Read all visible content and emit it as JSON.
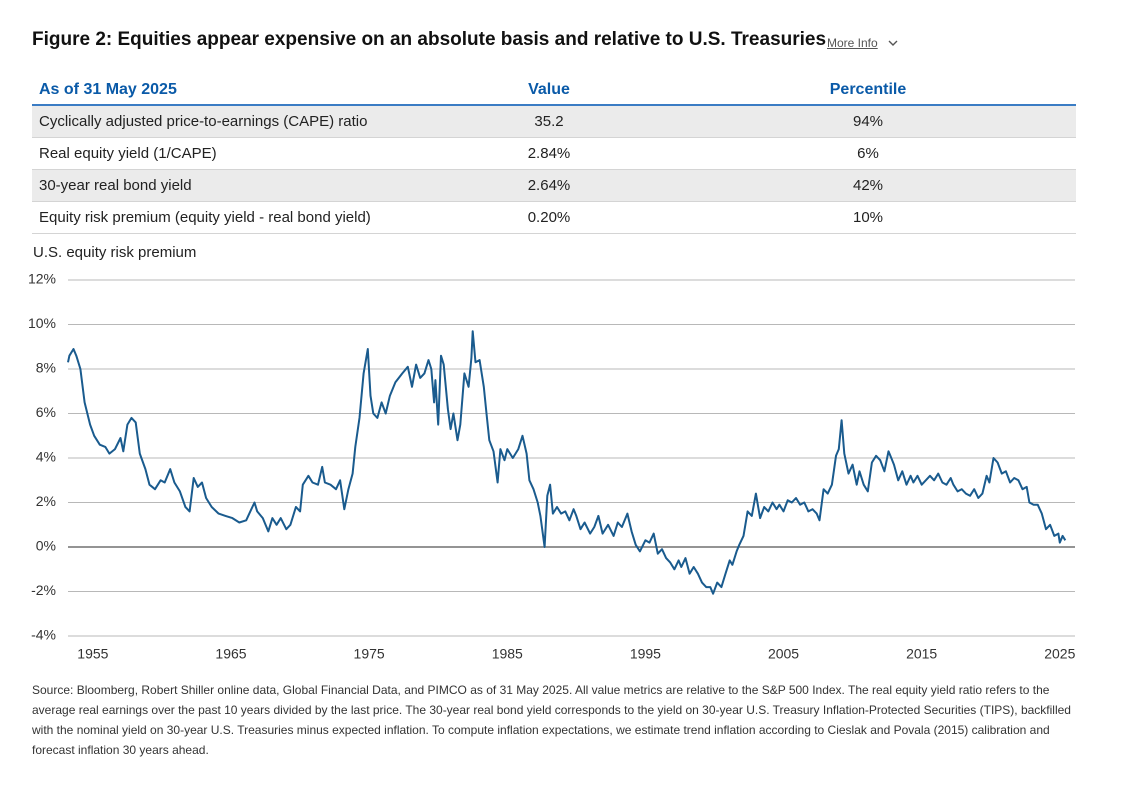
{
  "header": {
    "title": "Figure 2: Equities appear expensive on an absolute basis and relative to U.S. Treasuries",
    "more_info": "More Info"
  },
  "table": {
    "columns": [
      "As of 31 May 2025",
      "Value",
      "Percentile"
    ],
    "rows": [
      [
        "Cyclically adjusted price-to-earnings (CAPE) ratio",
        "35.2",
        "94%"
      ],
      [
        "Real equity yield (1/CAPE)",
        "2.84%",
        "6%"
      ],
      [
        "30-year real bond yield",
        "2.64%",
        "42%"
      ],
      [
        "Equity risk premium (equity yield - real bond yield)",
        "0.20%",
        "10%"
      ]
    ]
  },
  "chart_data": {
    "type": "line",
    "title": "U.S. equity risk premium",
    "x": [
      1953.2,
      1953.3,
      1953.6,
      1953.8,
      1954.1,
      1954.4,
      1954.8,
      1955.1,
      1955.5,
      1955.9,
      1956.2,
      1956.6,
      1957.0,
      1957.2,
      1957.5,
      1957.8,
      1958.1,
      1958.4,
      1958.8,
      1959.1,
      1959.5,
      1959.9,
      1960.2,
      1960.6,
      1960.9,
      1961.3,
      1961.7,
      1962.0,
      1962.3,
      1962.6,
      1962.9,
      1963.2,
      1963.6,
      1964.1,
      1964.6,
      1965.1,
      1965.6,
      1966.1,
      1966.4,
      1966.7,
      1966.9,
      1967.3,
      1967.7,
      1968.0,
      1968.3,
      1968.6,
      1969.0,
      1969.3,
      1969.7,
      1970.0,
      1970.2,
      1970.6,
      1970.9,
      1971.3,
      1971.6,
      1971.8,
      1972.2,
      1972.6,
      1972.9,
      1973.2,
      1973.5,
      1973.8,
      1974.0,
      1974.3,
      1974.6,
      1974.9,
      1975.1,
      1975.3,
      1975.6,
      1975.9,
      1976.2,
      1976.5,
      1976.9,
      1977.4,
      1977.8,
      1978.1,
      1978.4,
      1978.7,
      1979.0,
      1979.3,
      1979.5,
      1979.7,
      1979.8,
      1980.0,
      1980.2,
      1980.4,
      1980.7,
      1980.9,
      1981.1,
      1981.4,
      1981.6,
      1981.9,
      1982.2,
      1982.4,
      1982.5,
      1982.7,
      1983.0,
      1983.3,
      1983.5,
      1983.7,
      1984.0,
      1984.3,
      1984.5,
      1984.8,
      1985.0,
      1985.4,
      1985.8,
      1986.1,
      1986.4,
      1986.6,
      1986.9,
      1987.2,
      1987.4,
      1987.7,
      1987.9,
      1988.1,
      1988.3,
      1988.6,
      1988.9,
      1989.2,
      1989.5,
      1989.8,
      1990.0,
      1990.3,
      1990.6,
      1991.0,
      1991.3,
      1991.6,
      1991.9,
      1992.3,
      1992.7,
      1993.0,
      1993.3,
      1993.7,
      1994.0,
      1994.3,
      1994.6,
      1995.0,
      1995.3,
      1995.6,
      1995.9,
      1996.2,
      1996.5,
      1996.8,
      1997.1,
      1997.4,
      1997.6,
      1997.9,
      1998.2,
      1998.5,
      1998.8,
      1999.1,
      1999.4,
      1999.7,
      1999.9,
      2000.2,
      2000.5,
      2000.8,
      2001.1,
      2001.3,
      2001.6,
      2001.8,
      2002.1,
      2002.4,
      2002.7,
      2003.0,
      2003.3,
      2003.6,
      2003.9,
      2004.2,
      2004.5,
      2004.7,
      2005.0,
      2005.3,
      2005.6,
      2005.9,
      2006.2,
      2006.5,
      2006.8,
      2007.1,
      2007.4,
      2007.6,
      2007.9,
      2008.2,
      2008.5,
      2008.8,
      2009.0,
      2009.2,
      2009.4,
      2009.7,
      2010.0,
      2010.3,
      2010.5,
      2010.8,
      2011.1,
      2011.4,
      2011.7,
      2012.0,
      2012.3,
      2012.6,
      2012.8,
      2013.0,
      2013.3,
      2013.6,
      2013.9,
      2014.2,
      2014.4,
      2014.7,
      2015.0,
      2015.3,
      2015.6,
      2015.9,
      2016.2,
      2016.5,
      2016.8,
      2017.1,
      2017.3,
      2017.6,
      2017.9,
      2018.2,
      2018.5,
      2018.8,
      2019.1,
      2019.4,
      2019.7,
      2019.9,
      2020.2,
      2020.5,
      2020.8,
      2021.1,
      2021.4,
      2021.7,
      2022.0,
      2022.3,
      2022.6,
      2022.8,
      2023.1,
      2023.4,
      2023.7,
      2024.0,
      2024.3,
      2024.6,
      2024.9,
      2025.0,
      2025.2,
      2025.4
    ],
    "series": [
      {
        "color": "#1a5b8e",
        "values": [
          8.3,
          8.6,
          8.9,
          8.6,
          8.0,
          6.5,
          5.5,
          5.0,
          4.6,
          4.5,
          4.2,
          4.4,
          4.9,
          4.3,
          5.5,
          5.8,
          5.6,
          4.2,
          3.5,
          2.8,
          2.6,
          3.0,
          2.9,
          3.5,
          2.9,
          2.5,
          1.8,
          1.6,
          3.1,
          2.7,
          2.9,
          2.2,
          1.8,
          1.5,
          1.4,
          1.3,
          1.1,
          1.2,
          1.6,
          2.0,
          1.6,
          1.3,
          0.7,
          1.3,
          1.0,
          1.3,
          0.8,
          1.0,
          1.8,
          1.6,
          2.8,
          3.2,
          2.9,
          2.8,
          3.6,
          2.9,
          2.8,
          2.6,
          3.0,
          1.7,
          2.6,
          3.3,
          4.5,
          5.8,
          7.8,
          8.9,
          6.8,
          6.0,
          5.8,
          6.5,
          6.0,
          6.8,
          7.4,
          7.8,
          8.1,
          7.2,
          8.2,
          7.6,
          7.8,
          8.4,
          8.0,
          6.5,
          7.5,
          5.5,
          8.6,
          8.2,
          6.2,
          5.3,
          6.0,
          4.8,
          5.5,
          7.8,
          7.2,
          8.5,
          9.7,
          8.3,
          8.4,
          7.2,
          6.0,
          4.8,
          4.3,
          2.9,
          4.4,
          3.9,
          4.4,
          4.0,
          4.4,
          5.0,
          4.2,
          3.0,
          2.6,
          2.0,
          1.4,
          0.0,
          2.3,
          2.8,
          1.5,
          1.8,
          1.5,
          1.6,
          1.2,
          1.7,
          1.4,
          0.8,
          1.1,
          0.6,
          0.9,
          1.4,
          0.6,
          1.0,
          0.5,
          1.1,
          0.9,
          1.5,
          0.7,
          0.1,
          -0.2,
          0.3,
          0.2,
          0.6,
          -0.3,
          -0.1,
          -0.5,
          -0.7,
          -1.0,
          -0.6,
          -0.9,
          -0.5,
          -1.2,
          -0.9,
          -1.2,
          -1.6,
          -1.8,
          -1.8,
          -2.1,
          -1.6,
          -1.8,
          -1.2,
          -0.6,
          -0.8,
          -0.2,
          0.1,
          0.5,
          1.6,
          1.4,
          2.4,
          1.3,
          1.8,
          1.6,
          2.0,
          1.7,
          1.9,
          1.6,
          2.1,
          2.0,
          2.2,
          1.9,
          2.0,
          1.6,
          1.7,
          1.5,
          1.2,
          2.6,
          2.4,
          2.8,
          4.1,
          4.4,
          5.7,
          4.2,
          3.3,
          3.7,
          2.8,
          3.4,
          2.8,
          2.5,
          3.8,
          4.1,
          3.9,
          3.4,
          4.3,
          4.0,
          3.7,
          3.0,
          3.4,
          2.8,
          3.2,
          2.9,
          3.2,
          2.8,
          3.0,
          3.2,
          3.0,
          3.3,
          2.9,
          2.8,
          3.1,
          2.8,
          2.5,
          2.6,
          2.4,
          2.3,
          2.6,
          2.2,
          2.4,
          3.2,
          2.9,
          4.0,
          3.8,
          3.3,
          3.4,
          2.9,
          3.1,
          3.0,
          2.6,
          2.7,
          2.0,
          1.9,
          1.9,
          1.5,
          0.8,
          1.0,
          0.5,
          0.6,
          0.2,
          0.5,
          0.3
        ]
      }
    ],
    "xlim": [
      1953.2,
      2026.1
    ],
    "xticks": [
      1955,
      1965,
      1975,
      1985,
      1995,
      2005,
      2015,
      2025
    ],
    "ylim": [
      -4,
      12
    ],
    "yticks": [
      {
        "value": -4,
        "label": "-4%"
      },
      {
        "value": -2,
        "label": "-2%"
      },
      {
        "value": 0,
        "label": "0%"
      },
      {
        "value": 2,
        "label": "2%"
      },
      {
        "value": 4,
        "label": "4%"
      },
      {
        "value": 6,
        "label": "6%"
      },
      {
        "value": 8,
        "label": "8%"
      },
      {
        "value": 10,
        "label": "10%"
      },
      {
        "value": 12,
        "label": "12%"
      }
    ],
    "grid": true
  },
  "source": "Source: Bloomberg, Robert Shiller online data, Global Financial Data, and PIMCO as of 31 May 2025. All value metrics are relative to the S&P 500 Index. The real equity yield ratio refers to the average real earnings over the past 10 years divided by the last price. The 30-year real bond yield corresponds to the yield on 30-year U.S. Treasury Inflation-Protected Securities (TIPS), backfilled with the nominal yield on 30-year U.S. Treasuries minus expected inflation. To compute inflation expectations, we estimate trend inflation according to Cieslak and Povala (2015) calibration and forecast inflation 30 years ahead."
}
